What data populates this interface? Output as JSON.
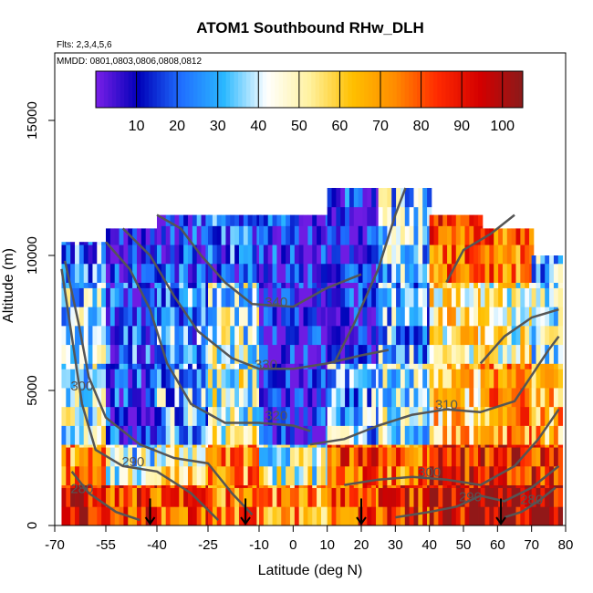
{
  "chart_data": {
    "type": "heatmap",
    "title": "ATOM1 Southbound RHw_DLH",
    "subtitle_flights": "Flts: 2,3,4,5,6",
    "subtitle_dates": "MMDD: 0801,0803,0806,0808,0812",
    "xlabel": "Latitude (deg N)",
    "ylabel": "Altitude (m)",
    "xlim": [
      -70,
      80
    ],
    "ylim": [
      0,
      17500
    ],
    "x_tick_labels": [
      "-70",
      "-55",
      "-40",
      "-25",
      "-10",
      "0",
      "10",
      "20",
      "30",
      "40",
      "50",
      "60",
      "70",
      "80"
    ],
    "y_tick_labels": [
      "0",
      "5000",
      "10000",
      "15000"
    ],
    "colorbar": {
      "range": [
        0,
        105
      ],
      "tick_labels": [
        "10",
        "20",
        "30",
        "40",
        "50",
        "60",
        "70",
        "80",
        "90",
        "100"
      ],
      "colors": [
        "#7a1fe8",
        "#0000b8",
        "#1f6fff",
        "#2ab8ff",
        "#ffffff",
        "#fff2a0",
        "#ffc000",
        "#ff8c00",
        "#ff2a00",
        "#d40000",
        "#8b1a1a"
      ]
    },
    "cells": [
      {
        "lat_start": -68,
        "lat_end": -55,
        "alt_profile": [
          [
            0,
            1500,
            95
          ],
          [
            1500,
            3000,
            70
          ],
          [
            3000,
            6000,
            40
          ],
          [
            6000,
            9000,
            35
          ],
          [
            9000,
            10500,
            25
          ]
        ]
      },
      {
        "lat_start": -55,
        "lat_end": -40,
        "alt_profile": [
          [
            0,
            1500,
            85
          ],
          [
            1500,
            3000,
            40
          ],
          [
            3000,
            6000,
            15
          ],
          [
            6000,
            9000,
            20
          ],
          [
            9000,
            11000,
            10
          ]
        ]
      },
      {
        "lat_start": -40,
        "lat_end": -25,
        "alt_profile": [
          [
            0,
            1500,
            80
          ],
          [
            1500,
            3000,
            55
          ],
          [
            3000,
            6000,
            30
          ],
          [
            6000,
            9000,
            25
          ],
          [
            9000,
            11500,
            15
          ]
        ]
      },
      {
        "lat_start": -25,
        "lat_end": -10,
        "alt_profile": [
          [
            0,
            1500,
            75
          ],
          [
            1500,
            3000,
            70
          ],
          [
            3000,
            6000,
            45
          ],
          [
            6000,
            9000,
            40
          ],
          [
            9000,
            11500,
            20
          ]
        ]
      },
      {
        "lat_start": -10,
        "lat_end": 10,
        "alt_profile": [
          [
            0,
            1500,
            70
          ],
          [
            1500,
            3000,
            45
          ],
          [
            3000,
            6000,
            10
          ],
          [
            6000,
            9000,
            8
          ],
          [
            9000,
            11500,
            12
          ]
        ]
      },
      {
        "lat_start": 10,
        "lat_end": 25,
        "alt_profile": [
          [
            0,
            1500,
            80
          ],
          [
            1500,
            3000,
            80
          ],
          [
            3000,
            6000,
            30
          ],
          [
            6000,
            9000,
            10
          ],
          [
            9000,
            12500,
            15
          ]
        ]
      },
      {
        "lat_start": 25,
        "lat_end": 40,
        "alt_profile": [
          [
            0,
            1500,
            85
          ],
          [
            1500,
            3000,
            75
          ],
          [
            3000,
            6000,
            40
          ],
          [
            6000,
            9000,
            30
          ],
          [
            9000,
            12500,
            35
          ]
        ]
      },
      {
        "lat_start": 40,
        "lat_end": 55,
        "alt_profile": [
          [
            0,
            1500,
            95
          ],
          [
            1500,
            3000,
            90
          ],
          [
            3000,
            6000,
            60
          ],
          [
            6000,
            9000,
            55
          ],
          [
            9000,
            11500,
            80
          ]
        ]
      },
      {
        "lat_start": 55,
        "lat_end": 70,
        "alt_profile": [
          [
            0,
            1500,
            100
          ],
          [
            1500,
            3000,
            90
          ],
          [
            3000,
            6000,
            70
          ],
          [
            6000,
            9000,
            50
          ],
          [
            9000,
            11000,
            75
          ]
        ]
      },
      {
        "lat_start": 70,
        "lat_end": 79,
        "alt_profile": [
          [
            0,
            1500,
            95
          ],
          [
            1500,
            3000,
            85
          ],
          [
            3000,
            6000,
            65
          ],
          [
            6000,
            9000,
            40
          ],
          [
            9000,
            10000,
            30
          ]
        ]
      }
    ],
    "contours": [
      {
        "label": "280",
        "label_at": [
          -62,
          1200
        ],
        "points": [
          [
            -65,
            2000
          ],
          [
            -60,
            1200
          ],
          [
            -52,
            500
          ],
          [
            -45,
            200
          ]
        ]
      },
      {
        "label": "290",
        "label_at": [
          -47,
          2200
        ],
        "points": [
          [
            -68,
            9500
          ],
          [
            -65,
            7000
          ],
          [
            -62,
            4500
          ],
          [
            -58,
            2800
          ],
          [
            -50,
            2200
          ],
          [
            -40,
            2000
          ],
          [
            -30,
            1200
          ],
          [
            -22,
            200
          ]
        ]
      },
      {
        "label": "300",
        "label_at": [
          -62,
          5000
        ],
        "points": [
          [
            -67,
            9800
          ],
          [
            -63,
            7500
          ],
          [
            -60,
            5500
          ],
          [
            -55,
            4000
          ],
          [
            -45,
            3000
          ],
          [
            -35,
            2500
          ],
          [
            -25,
            2300
          ],
          [
            -18,
            1200
          ],
          [
            -12,
            400
          ]
        ]
      },
      {
        "label": "320",
        "label_at": [
          -5,
          3900
        ],
        "points": [
          [
            -55,
            10500
          ],
          [
            -48,
            9500
          ],
          [
            -42,
            8000
          ],
          [
            -37,
            6000
          ],
          [
            -30,
            4500
          ],
          [
            -20,
            3800
          ],
          [
            -10,
            3800
          ],
          [
            0,
            3700
          ],
          [
            5,
            3500
          ]
        ]
      },
      {
        "label": "330",
        "label_at": [
          -8,
          5800
        ],
        "points": [
          [
            -50,
            11000
          ],
          [
            -42,
            10000
          ],
          [
            -35,
            8500
          ],
          [
            -28,
            7200
          ],
          [
            -18,
            6200
          ],
          [
            -10,
            5800
          ],
          [
            0,
            5800
          ],
          [
            10,
            6000
          ],
          [
            20,
            6300
          ],
          [
            28,
            6500
          ]
        ]
      },
      {
        "label": "340",
        "label_at": [
          -5,
          8100
        ],
        "points": [
          [
            -40,
            11500
          ],
          [
            -33,
            11000
          ],
          [
            -27,
            10000
          ],
          [
            -20,
            9000
          ],
          [
            -12,
            8200
          ],
          [
            0,
            8100
          ],
          [
            10,
            8800
          ],
          [
            20,
            9300
          ]
        ]
      },
      {
        "label": "310",
        "label_at": [
          45,
          4300
        ],
        "points": [
          [
            5,
            3000
          ],
          [
            15,
            3200
          ],
          [
            25,
            3700
          ],
          [
            35,
            4100
          ],
          [
            45,
            4300
          ],
          [
            55,
            4200
          ],
          [
            65,
            4600
          ],
          [
            75,
            6500
          ],
          [
            78,
            7000
          ]
        ]
      },
      {
        "label": "290",
        "label_at": [
          52,
          900
        ],
        "points": [
          [
            30,
            300
          ],
          [
            40,
            500
          ],
          [
            48,
            700
          ],
          [
            55,
            1100
          ],
          [
            62,
            900
          ],
          [
            70,
            1400
          ],
          [
            78,
            2200
          ]
        ]
      },
      {
        "label": "300",
        "label_at": [
          40,
          1800
        ],
        "points": [
          [
            15,
            1500
          ],
          [
            25,
            1700
          ],
          [
            35,
            1800
          ],
          [
            45,
            1700
          ],
          [
            55,
            1500
          ],
          [
            65,
            2200
          ],
          [
            72,
            3200
          ],
          [
            78,
            4300
          ]
        ]
      },
      {
        "label": "280",
        "label_at": [
          70,
          800
        ],
        "points": [
          [
            62,
            300
          ],
          [
            67,
            500
          ],
          [
            72,
            900
          ],
          [
            77,
            1400
          ]
        ]
      },
      {
        "label": "",
        "label_at": [
          0,
          0
        ],
        "points": [
          [
            12,
            6000
          ],
          [
            18,
            7500
          ],
          [
            25,
            9500
          ],
          [
            30,
            11500
          ],
          [
            33,
            12500
          ]
        ]
      },
      {
        "label": "",
        "label_at": [
          0,
          0
        ],
        "points": [
          [
            45,
            9000
          ],
          [
            50,
            10200
          ],
          [
            58,
            10800
          ],
          [
            65,
            11500
          ]
        ]
      },
      {
        "label": "",
        "label_at": [
          0,
          0
        ],
        "points": [
          [
            55,
            6000
          ],
          [
            62,
            7000
          ],
          [
            70,
            7700
          ],
          [
            78,
            8000
          ]
        ]
      }
    ],
    "arrows_at_lat": [
      -42,
      -14,
      20,
      61
    ]
  }
}
